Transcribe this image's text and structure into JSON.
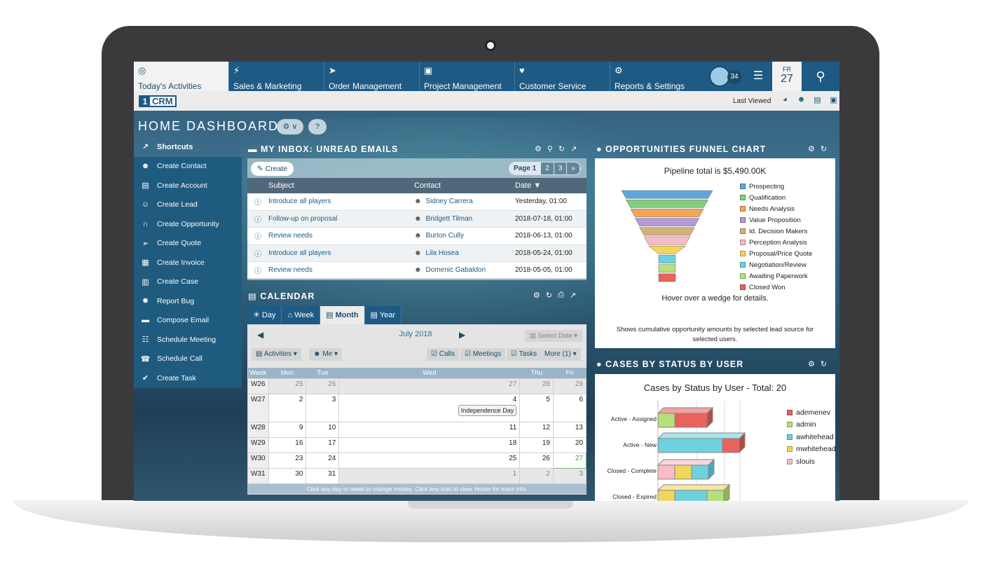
{
  "nav": {
    "tabs": [
      {
        "label": "Today's Activities",
        "icon": "globe-icon",
        "glyph": "◎"
      },
      {
        "label": "Sales & Marketing",
        "icon": "bolt-icon",
        "glyph": "⚡"
      },
      {
        "label": "Order Management",
        "icon": "paper-plane-icon",
        "glyph": "➤"
      },
      {
        "label": "Project Management",
        "icon": "cube-icon",
        "glyph": "▣"
      },
      {
        "label": "Customer Service",
        "icon": "heart-icon",
        "glyph": "♥"
      },
      {
        "label": "Reports & Settings",
        "icon": "gear-icon",
        "glyph": "⚙"
      }
    ],
    "notification_count": "34",
    "date_weekday": "FR",
    "date_day": "27"
  },
  "subbar": {
    "logo_num": "1",
    "logo_text": "CRM",
    "last_viewed": "Last Viewed"
  },
  "dashboard": {
    "title": "HOME DASHBOARD"
  },
  "sidebar": {
    "heading": "Shortcuts",
    "items": [
      {
        "label": "Create Contact",
        "icon": "person-icon",
        "glyph": "☻"
      },
      {
        "label": "Create Account",
        "icon": "book-icon",
        "glyph": "▤"
      },
      {
        "label": "Create Lead",
        "icon": "smile-icon",
        "glyph": "☺"
      },
      {
        "label": "Create Opportunity",
        "icon": "magnet-icon",
        "glyph": "∩"
      },
      {
        "label": "Create Quote",
        "icon": "send-icon",
        "glyph": "➢"
      },
      {
        "label": "Create Invoice",
        "icon": "calculator-icon",
        "glyph": "▦"
      },
      {
        "label": "Create Case",
        "icon": "clipboard-icon",
        "glyph": "▥"
      },
      {
        "label": "Report Bug",
        "icon": "bug-icon",
        "glyph": "✹"
      },
      {
        "label": "Compose Email",
        "icon": "envelope-icon",
        "glyph": "▬"
      },
      {
        "label": "Schedule Meeting",
        "icon": "people-icon",
        "glyph": "☷"
      },
      {
        "label": "Schedule Call",
        "icon": "phone-icon",
        "glyph": "☎"
      },
      {
        "label": "Create Task",
        "icon": "check-circle-icon",
        "glyph": "✔"
      }
    ]
  },
  "inbox": {
    "title": "MY INBOX: UNREAD EMAILS",
    "create_label": "Create",
    "pages": [
      "Page 1",
      "2",
      "3",
      "»"
    ],
    "columns": [
      "Subject",
      "Contact",
      "Date"
    ],
    "rows": [
      {
        "subject": "Introduce all players",
        "contact": "Sidney Carrera",
        "date": "Yesterday, 01:00"
      },
      {
        "subject": "Follow-up on proposal",
        "contact": "Bridgett Tilman",
        "date": "2018-07-18, 01:00"
      },
      {
        "subject": "Review needs",
        "contact": "Burton Cully",
        "date": "2018-06-13, 01:00"
      },
      {
        "subject": "Introduce all players",
        "contact": "Lila Hosea",
        "date": "2018-05-24, 01:00"
      },
      {
        "subject": "Review needs",
        "contact": "Domenic Gabaldon",
        "date": "2018-05-05, 01:00"
      }
    ]
  },
  "calendar": {
    "title": "CALENDAR",
    "tabs": [
      "Day",
      "Week",
      "Month",
      "Year"
    ],
    "active_tab": "Month",
    "month_label": "July 2018",
    "select_date": "Select Date",
    "filters": {
      "activities": "Activities",
      "me": "Me",
      "calls": "Calls",
      "meetings": "Meetings",
      "tasks": "Tasks",
      "more": "More (1)"
    },
    "headers": [
      "Week",
      "Mon",
      "Tue",
      "Wed",
      "Thu",
      "Fri"
    ],
    "weeks": [
      {
        "wk": "W26",
        "days": [
          "25",
          "26",
          "27",
          "28",
          "29"
        ]
      },
      {
        "wk": "W27",
        "days": [
          "2",
          "3",
          "4",
          "5",
          "6"
        ]
      },
      {
        "wk": "W28",
        "days": [
          "9",
          "10",
          "11",
          "12",
          "13"
        ]
      },
      {
        "wk": "W29",
        "days": [
          "16",
          "17",
          "18",
          "19",
          "20"
        ]
      },
      {
        "wk": "W30",
        "days": [
          "23",
          "24",
          "25",
          "26",
          "27"
        ]
      },
      {
        "wk": "W31",
        "days": [
          "30",
          "31",
          "1",
          "2",
          "3"
        ]
      }
    ],
    "holiday": "Independence Day",
    "footer": "Click any day or week to change modes. Click any icon to view. Hover for more info."
  },
  "funnel": {
    "panel_title": "OPPORTUNITIES FUNNEL CHART",
    "chart_title": "Pipeline total is $5,490.00K",
    "hover_note": "Hover over a wedge for details.",
    "description": "Shows cumulative opportunity amounts by selected lead source for selected users.",
    "legend": [
      {
        "label": "Prospecting",
        "color": "#5fa6dc"
      },
      {
        "label": "Qualification",
        "color": "#7fcf7f"
      },
      {
        "label": "Needs Analysis",
        "color": "#f4a35a"
      },
      {
        "label": "Value Proposition",
        "color": "#b79ad6"
      },
      {
        "label": "Id. Decision Makers",
        "color": "#d5b07c"
      },
      {
        "label": "Perception Analysis",
        "color": "#f7bcc6"
      },
      {
        "label": "Proposal/Price Quote",
        "color": "#f2d65b"
      },
      {
        "label": "Negotiation/Review",
        "color": "#6fd1de"
      },
      {
        "label": "Awaiting Paperwork",
        "color": "#b6e07a"
      },
      {
        "label": "Closed Won",
        "color": "#e8625e"
      }
    ]
  },
  "cases": {
    "panel_title": "CASES BY STATUS BY USER",
    "chart_title": "Cases by Status by User - Total: 20",
    "categories": [
      "Active - Assigned",
      "Active - New",
      "Closed - Complete",
      "Closed - Expired"
    ],
    "legend": [
      {
        "label": "ademenev",
        "color": "#e8625e"
      },
      {
        "label": "admin",
        "color": "#b6e07a"
      },
      {
        "label": "awhitehead",
        "color": "#6fd1de"
      },
      {
        "label": "mwhitehead",
        "color": "#f2d65b"
      },
      {
        "label": "slouis",
        "color": "#f7bcc6"
      }
    ]
  }
}
